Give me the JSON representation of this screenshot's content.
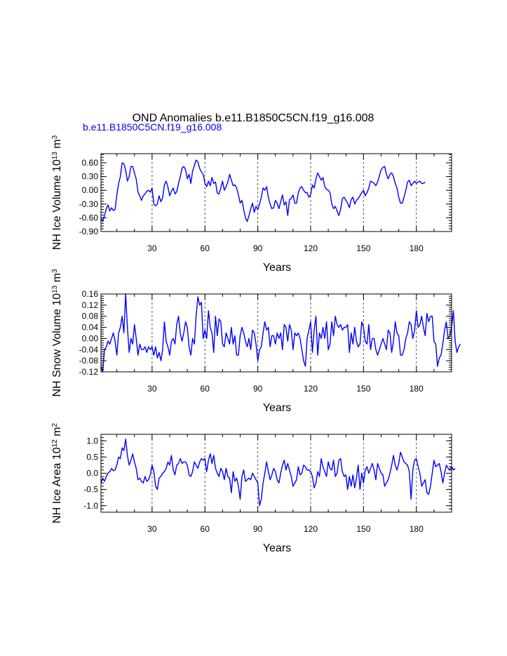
{
  "figure": {
    "title": "OND Anomalies b.e11.B1850C5CN.f19_g16.008",
    "subtitle": "b.e11.B1850C5CN.f19_g16.008",
    "subtitle_color": "#0000ff",
    "line_color": "#0000ff",
    "grid_color": "#555555"
  },
  "chart_data": [
    {
      "type": "line",
      "title": "NH Ice Volume",
      "ylabel": "NH Ice Volume 10",
      "ylabel_exp": "13",
      "ylabel_unit": " m",
      "ylabel_unit_exp": "3",
      "xlabel": "Years",
      "xlim": [
        1,
        200
      ],
      "ylim": [
        -0.9,
        0.8
      ],
      "yticks": [
        -0.9,
        -0.6,
        -0.3,
        0.0,
        0.3,
        0.6
      ],
      "ytick_labels": [
        "-0.90",
        "-0.60",
        "-0.30",
        "0.00",
        "0.30",
        "0.60"
      ],
      "xticks": [
        30,
        60,
        90,
        120,
        150,
        180
      ],
      "xtick_labels": [
        "30",
        "60",
        "90",
        "120",
        "150",
        "180"
      ],
      "grid_x": [
        30,
        60,
        90,
        120,
        150,
        180
      ],
      "series": [
        {
          "name": "NH Ice Volume",
          "values": [
            -0.6,
            -0.68,
            -0.55,
            -0.4,
            -0.32,
            -0.45,
            -0.38,
            -0.44,
            -0.42,
            -0.1,
            0.15,
            0.3,
            0.6,
            0.58,
            0.44,
            0.2,
            0.3,
            0.52,
            0.52,
            0.38,
            0.25,
            -0.04,
            -0.12,
            -0.22,
            -0.12,
            -0.08,
            -0.02,
            0.0,
            -0.04,
            0.05,
            -0.3,
            -0.34,
            -0.3,
            -0.12,
            -0.25,
            -0.16,
            0.12,
            0.2,
            0.07,
            -0.12,
            -0.02,
            0.05,
            -0.08,
            -0.03,
            0.15,
            0.3,
            0.48,
            0.52,
            0.45,
            0.25,
            0.35,
            0.15,
            0.42,
            0.54,
            0.66,
            0.62,
            0.48,
            0.4,
            0.35,
            0.15,
            0.08,
            0.2,
            0.1,
            0.28,
            0.15,
            0.18,
            -0.06,
            -0.08,
            0.05,
            0.2,
            0.0,
            0.08,
            0.18,
            0.35,
            0.22,
            0.1,
            0.12,
            0.05,
            -0.1,
            -0.28,
            -0.22,
            -0.42,
            -0.6,
            -0.68,
            -0.55,
            -0.4,
            -0.28,
            -0.48,
            -0.35,
            -0.42,
            -0.3,
            -0.15,
            0.05,
            0.0,
            0.08,
            -0.15,
            -0.3,
            -0.4,
            -0.38,
            -0.22,
            -0.28,
            -0.4,
            -0.25,
            -0.1,
            -0.32,
            -0.25,
            -0.55,
            -0.2,
            -0.18,
            -0.1,
            -0.28,
            -0.28,
            -0.05,
            0.05,
            0.08,
            0.0,
            -0.05,
            -0.05,
            -0.15,
            -0.1,
            0.12,
            0.05,
            0.25,
            0.38,
            0.3,
            0.22,
            0.28,
            0.08,
            0.02,
            0.0,
            -0.05,
            -0.3,
            -0.4,
            -0.35,
            -0.45,
            -0.55,
            -0.42,
            -0.18,
            -0.15,
            -0.22,
            -0.28,
            -0.38,
            -0.2,
            -0.15,
            -0.3,
            -0.22,
            -0.18,
            -0.12,
            -0.05,
            0.0,
            -0.12,
            -0.05,
            0.05,
            0.2,
            0.18,
            0.15,
            0.1,
            0.18,
            0.32,
            0.45,
            0.5,
            0.52,
            0.35,
            0.25,
            0.35,
            0.38,
            0.3,
            0.15,
            0.05,
            -0.15,
            -0.28,
            -0.28,
            -0.15,
            0.0,
            0.18,
            0.22,
            0.1,
            0.15,
            0.2,
            0.15,
            0.18,
            0.2,
            0.15,
            0.15,
            0.18
          ]
        }
      ]
    },
    {
      "type": "line",
      "title": "NH Snow Volume",
      "ylabel": "NH Snow Volume 10",
      "ylabel_exp": "13",
      "ylabel_unit": " m",
      "ylabel_unit_exp": "3",
      "xlabel": "Years",
      "xlim": [
        1,
        200
      ],
      "ylim": [
        -0.12,
        0.16
      ],
      "yticks": [
        -0.12,
        -0.08,
        -0.04,
        0.0,
        0.04,
        0.08,
        0.12,
        0.16
      ],
      "ytick_labels": [
        "-0.12",
        "-0.08",
        "-0.04",
        "0.00",
        "0.04",
        "0.08",
        "0.12",
        "0.16"
      ],
      "xticks": [
        30,
        60,
        90,
        120,
        150,
        180
      ],
      "xtick_labels": [
        "30",
        "60",
        "90",
        "120",
        "150",
        "180"
      ],
      "grid_x": [
        30,
        60,
        90,
        120,
        150,
        180
      ],
      "series": [
        {
          "name": "NH Snow Volume",
          "values": [
            -0.1,
            -0.12,
            -0.04,
            -0.03,
            -0.01,
            -0.02,
            0.0,
            0.02,
            -0.01,
            -0.06,
            0.02,
            0.04,
            0.08,
            0.02,
            0.16,
            0.04,
            -0.05,
            0.0,
            -0.02,
            0.05,
            0.0,
            -0.06,
            -0.02,
            -0.04,
            -0.04,
            -0.03,
            -0.05,
            -0.03,
            -0.04,
            -0.03,
            -0.06,
            -0.03,
            -0.07,
            -0.05,
            -0.08,
            -0.04,
            0.06,
            -0.01,
            -0.03,
            -0.06,
            -0.01,
            0.0,
            -0.02,
            0.05,
            0.08,
            0.02,
            -0.01,
            0.02,
            0.06,
            0.04,
            -0.03,
            -0.06,
            0.0,
            -0.02,
            0.08,
            0.15,
            0.12,
            0.13,
            0.0,
            0.03,
            0.0,
            0.1,
            0.04,
            0.02,
            -0.05,
            0.08,
            0.01,
            0.07,
            0.06,
            -0.02,
            -0.03,
            0.02,
            0.0,
            -0.02,
            0.04,
            -0.02,
            0.01,
            -0.06,
            -0.06,
            0.01,
            0.04,
            0.02,
            -0.01,
            -0.03,
            0.0,
            -0.04,
            0.03,
            0.02,
            -0.02,
            -0.08,
            -0.04,
            -0.03,
            0.02,
            0.06,
            0.03,
            0.04,
            -0.03,
            0.01,
            0.01,
            -0.02,
            0.02,
            0.0,
            0.02,
            -0.04,
            0.05,
            0.04,
            -0.01,
            0.05,
            0.03,
            -0.04,
            0.02,
            0.01,
            0.02,
            0.0,
            -0.04,
            -0.08,
            -0.1,
            0.0,
            0.03,
            0.06,
            -0.05,
            0.03,
            0.08,
            -0.06,
            0.02,
            0.0,
            0.04,
            0.0,
            0.06,
            -0.04,
            -0.02,
            0.06,
            0.01,
            0.08,
            0.05,
            0.04,
            0.05,
            0.03,
            0.04,
            0.04,
            0.05,
            -0.05,
            0.02,
            -0.02,
            0.04,
            -0.01,
            -0.03,
            -0.02,
            0.06,
            0.04,
            -0.01,
            -0.02,
            0.05,
            -0.04,
            0.0,
            0.0,
            -0.04,
            -0.06,
            -0.04,
            -0.02,
            0.0,
            -0.02,
            -0.04,
            0.03,
            0.02,
            -0.05,
            -0.01,
            0.06,
            0.02,
            0.01,
            -0.06,
            -0.06,
            -0.04,
            0.0,
            0.02,
            0.06,
            0.05,
            0.0,
            0.03,
            0.1,
            0.04,
            0.05,
            0.08,
            0.04,
            0.01,
            0.09,
            0.06,
            0.08,
            0.08,
            -0.01,
            -0.02,
            -0.1,
            -0.07,
            -0.06,
            -0.02,
            0.03,
            0.06,
            0.0,
            0.01,
            0.04,
            0.1,
            -0.01,
            -0.05,
            -0.03,
            -0.02
          ]
        }
      ]
    },
    {
      "type": "line",
      "title": "NH Ice Area",
      "ylabel": "NH Ice Area 10",
      "ylabel_exp": "12",
      "ylabel_unit": " m",
      "ylabel_unit_exp": "2",
      "xlabel": "Years",
      "xlim": [
        1,
        200
      ],
      "ylim": [
        -1.2,
        1.2
      ],
      "yticks": [
        -1.0,
        -0.5,
        0.0,
        0.5,
        1.0
      ],
      "ytick_labels": [
        "-1.0",
        "-0.5",
        "0.0",
        "0.5",
        "1.0"
      ],
      "xticks": [
        30,
        60,
        90,
        120,
        150,
        180
      ],
      "xtick_labels": [
        "30",
        "60",
        "90",
        "120",
        "150",
        "180"
      ],
      "grid_x": [
        30,
        60,
        90,
        120,
        150,
        180
      ],
      "series": [
        {
          "name": "NH Ice Area",
          "values": [
            -0.3,
            -0.15,
            -0.25,
            -0.1,
            0.0,
            0.05,
            0.15,
            0.08,
            0.1,
            0.25,
            0.5,
            0.45,
            0.78,
            0.7,
            1.05,
            0.55,
            0.25,
            0.4,
            0.6,
            0.35,
            0.15,
            -0.2,
            -0.15,
            -0.25,
            -0.3,
            -0.1,
            -0.25,
            -0.2,
            -0.05,
            0.25,
            0.05,
            -0.4,
            -0.5,
            -0.15,
            -0.1,
            0.0,
            0.05,
            0.15,
            0.35,
            0.25,
            0.55,
            0.1,
            -0.05,
            0.25,
            0.3,
            0.45,
            0.3,
            0.35,
            0.35,
            0.25,
            -0.05,
            -0.1,
            0.05,
            0.35,
            0.25,
            0.15,
            0.35,
            0.45,
            0.4,
            0.45,
            0.05,
            0.4,
            0.6,
            0.3,
            0.55,
            0.15,
            0.0,
            -0.1,
            0.15,
            0.05,
            -0.2,
            0.15,
            -0.1,
            -0.15,
            -0.6,
            0.05,
            -0.25,
            -0.15,
            -0.4,
            -0.8,
            -0.1,
            0.1,
            -0.25,
            -0.2,
            -0.15,
            -0.2,
            0.0,
            -0.1,
            -0.2,
            -0.3,
            -1.0,
            -0.8,
            -0.3,
            0.0,
            0.35,
            0.05,
            -0.2,
            -0.05,
            0.15,
            0.05,
            -0.2,
            -0.3,
            0.0,
            0.25,
            0.4,
            0.1,
            0.3,
            0.1,
            -0.1,
            -0.4,
            -0.3,
            -0.2,
            0.2,
            -0.05,
            0.0,
            0.25,
            0.2,
            0.1,
            0.1,
            0.05,
            -0.1,
            -0.45,
            -0.3,
            0.05,
            -0.1,
            0.45,
            0.2,
            0.05,
            -0.1,
            0.35,
            0.15,
            0.1,
            0.4,
            -0.1,
            0.0,
            0.4,
            0.45,
            0.05,
            -0.1,
            -0.05,
            -0.5,
            -0.1,
            -0.4,
            -0.05,
            -0.45,
            -0.15,
            0.25,
            -0.5,
            0.0,
            -0.3,
            0.1,
            0.2,
            0.0,
            0.15,
            0.3,
            0.1,
            -0.2,
            0.3,
            0.15,
            0.0,
            -0.05,
            -0.4,
            -0.3,
            -0.2,
            0.0,
            0.25,
            0.55,
            0.25,
            0.1,
            0.3,
            0.65,
            0.5,
            0.35,
            0.3,
            0.25,
            0.05,
            -0.8,
            0.1,
            0.4,
            0.45,
            0.2,
            0.0,
            -0.4,
            -0.3,
            -0.2,
            -0.6,
            -0.65,
            -0.4,
            0.0,
            0.4,
            0.2,
            0.25,
            0.3,
            0.05,
            -0.3,
            0.0,
            0.25,
            0.15,
            0.1,
            0.2,
            0.1,
            0.15
          ]
        }
      ]
    }
  ]
}
